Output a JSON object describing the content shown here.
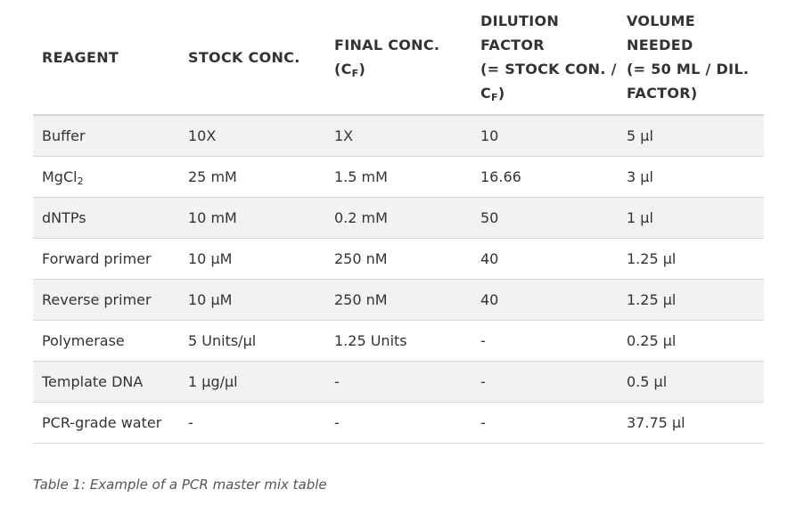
{
  "table": {
    "headers": [
      {
        "lines": [
          "REAGENT"
        ]
      },
      {
        "lines": [
          "STOCK CONC."
        ]
      },
      {
        "lines": [
          "FINAL CONC.",
          "(C|F|)"
        ]
      },
      {
        "lines": [
          "DILUTION",
          "FACTOR",
          "(= STOCK CON. /",
          "C|F|)"
        ]
      },
      {
        "lines": [
          "VOLUME",
          "NEEDED",
          "(= 50 ML / DIL.",
          "FACTOR)"
        ]
      }
    ],
    "rows": [
      [
        "Buffer",
        "10X",
        "1X",
        "10",
        "5 µl"
      ],
      [
        "MgCl|2|",
        "25 mM",
        "1.5 mM",
        "16.66",
        "3 µl"
      ],
      [
        "dNTPs",
        "10 mM",
        "0.2 mM",
        "50",
        "1 µl"
      ],
      [
        "Forward primer",
        "10 µM",
        "250 nM",
        "40",
        "1.25 µl"
      ],
      [
        "Reverse primer",
        "10 µM",
        "250 nM",
        "40",
        "1.25 µl"
      ],
      [
        "Polymerase",
        "5 Units/µl",
        "1.25 Units",
        "-",
        "0.25 µl"
      ],
      [
        "Template DNA",
        "1 µg/µl",
        "-",
        "-",
        "0.5 µl"
      ],
      [
        "PCR-grade water",
        "-",
        "-",
        "-",
        "37.75 µl"
      ]
    ]
  },
  "caption": "Table 1: Example of a PCR master mix table"
}
